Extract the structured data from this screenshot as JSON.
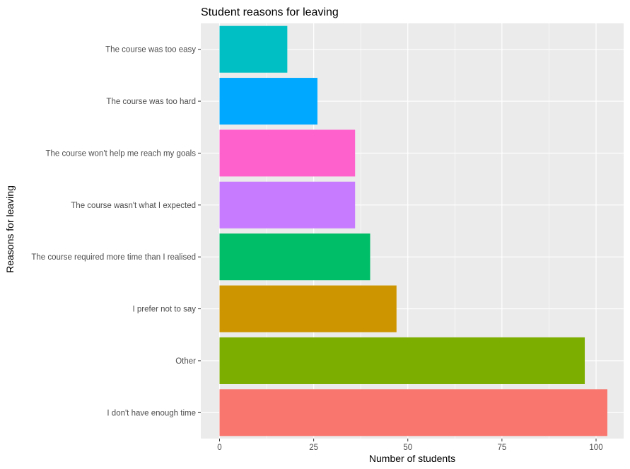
{
  "chart_data": {
    "type": "bar",
    "orientation": "horizontal",
    "title": "Student reasons for leaving",
    "xlabel": "Number of students",
    "ylabel": "Reasons for leaving",
    "xlim": [
      0,
      107
    ],
    "xticks": [
      0,
      25,
      50,
      75,
      100
    ],
    "grid": true,
    "legend": "none",
    "panel_background": "#EBEBEB",
    "categories": [
      "I don't have enough time",
      "Other",
      "I prefer not to say",
      "The course required more time than I realised",
      "The course wasn't what I expected",
      "The course won't help me reach my goals",
      "The course was too hard",
      "The course was too easy"
    ],
    "values": [
      103,
      97,
      47,
      40,
      36,
      36,
      26,
      18
    ],
    "colors": [
      "#F8766D",
      "#7CAE00",
      "#CD9600",
      "#00BE67",
      "#C77CFF",
      "#FF61CC",
      "#00A9FF",
      "#00BFC4"
    ]
  }
}
